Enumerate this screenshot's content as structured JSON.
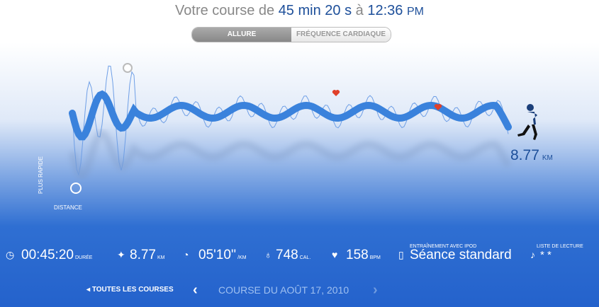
{
  "header": {
    "prefix": "Votre course de",
    "duration": "45 min 20 s",
    "at": "à",
    "time": "12:36",
    "ampm": "PM"
  },
  "tabs": [
    "ALLURE",
    "FRÉQUENCE CARDIAQUE"
  ],
  "graph": {
    "distance": "8.77",
    "distance_unit": "KM",
    "y_label": "PLUS RAPIDE",
    "x_label": "DISTANCE"
  },
  "stats": [
    {
      "value": "00:45:20",
      "unit": "DURÉE"
    },
    {
      "value": "8.77",
      "unit": "KM"
    },
    {
      "value": "05'10''",
      "unit": "/KM"
    },
    {
      "value": "748",
      "unit": "CAL."
    },
    {
      "value": "158",
      "unit": "BPM"
    }
  ],
  "ipod": {
    "label": "ENTRAÎNEMENT AVEC IPOD",
    "value": "Séance standard"
  },
  "playlist": {
    "label": "LISTE DE LECTURE",
    "value": "* *"
  },
  "nav": {
    "all_runs": "TOUTES LES COURSES",
    "run_date": "COURSE DU AOÛT 17, 2010"
  }
}
